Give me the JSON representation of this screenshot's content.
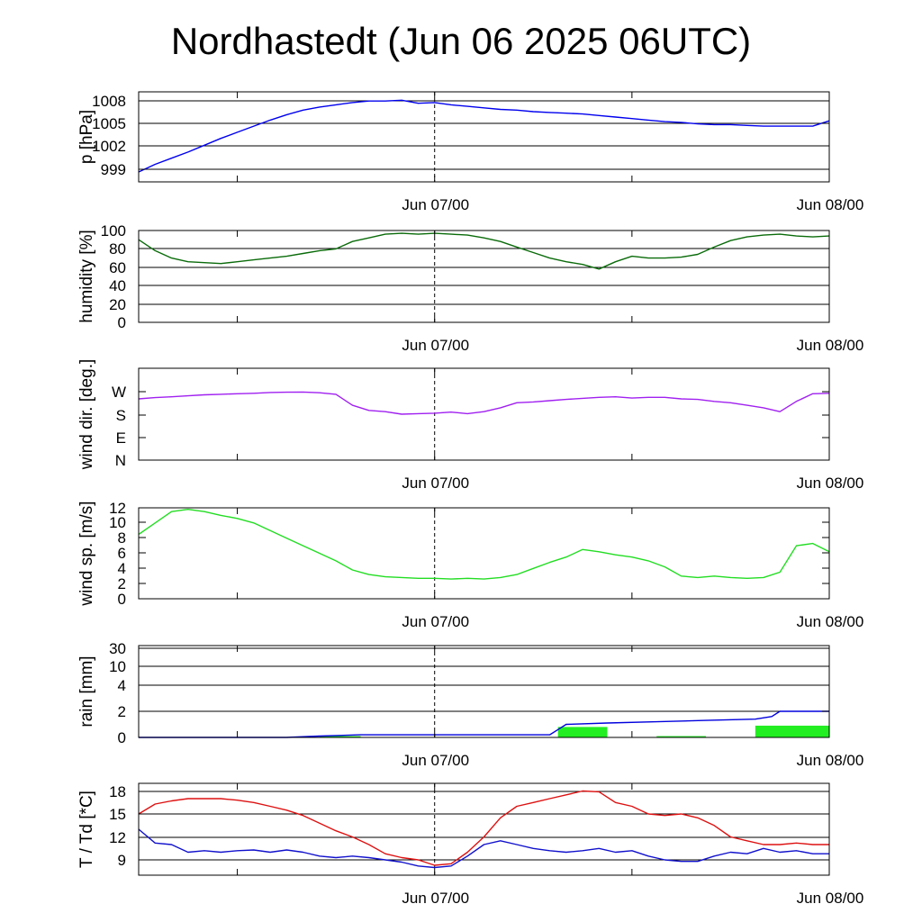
{
  "title": "Nordhastedt (Jun 06 2025 06UTC)",
  "colors": {
    "pressure": "#0000ee",
    "humidity": "#0a6b0a",
    "wind_direction": "#a020f0",
    "wind_speed": "#22dd22",
    "rain_total": "#0000dd",
    "rain_bars": "#22ee22",
    "temperature": "#dd1111",
    "dewpoint": "#1111cc"
  },
  "chart_data": [
    {
      "type": "line",
      "ylabel": "p [hPa]",
      "x_ticks": [
        "Jun 07/00",
        "Jun 08/00"
      ],
      "yticks": [
        "999",
        "1002",
        "1005",
        "1008"
      ],
      "ylim": [
        997.5,
        1009.3
      ],
      "grid": true,
      "series": [
        {
          "x": [
            0,
            1,
            2,
            3,
            4,
            5,
            6,
            7,
            8,
            9,
            10,
            11,
            12,
            13,
            14,
            15,
            16,
            17,
            18,
            19,
            20,
            21,
            22,
            23,
            24,
            25,
            26,
            27,
            28,
            29,
            30,
            31,
            32,
            33,
            34,
            35,
            36,
            37,
            38,
            39,
            40,
            41,
            42
          ],
          "values": [
            998.8,
            999.8,
            1000.6,
            1001.4,
            1002.3,
            1003.2,
            1004.0,
            1004.8,
            1005.6,
            1006.3,
            1006.9,
            1007.3,
            1007.6,
            1007.9,
            1008.1,
            1008.1,
            1008.2,
            1007.8,
            1007.9,
            1007.6,
            1007.4,
            1007.2,
            1007.0,
            1006.9,
            1006.7,
            1006.6,
            1006.5,
            1006.4,
            1006.2,
            1006.0,
            1005.8,
            1005.6,
            1005.4,
            1005.3,
            1005.1,
            1005.0,
            1005.0,
            1004.9,
            1004.8,
            1004.8,
            1004.8,
            1004.8,
            1005.5
          ]
        }
      ]
    },
    {
      "type": "line",
      "ylabel": "humidity [%]",
      "x_ticks": [
        "Jun 07/00",
        "Jun 08/00"
      ],
      "yticks": [
        "0",
        "20",
        "40",
        "60",
        "80",
        "100"
      ],
      "ylim": [
        0,
        100
      ],
      "grid": true,
      "series": [
        {
          "x": [
            0,
            1,
            2,
            3,
            4,
            5,
            6,
            7,
            8,
            9,
            10,
            11,
            12,
            13,
            14,
            15,
            16,
            17,
            18,
            19,
            20,
            21,
            22,
            23,
            24,
            25,
            26,
            27,
            28,
            29,
            30,
            31,
            32,
            33,
            34,
            35,
            36,
            37,
            38,
            39,
            40,
            41,
            42
          ],
          "values": [
            90,
            78,
            70,
            66,
            65,
            64,
            66,
            68,
            70,
            72,
            75,
            78,
            80,
            88,
            92,
            96,
            97,
            96,
            97,
            96,
            95,
            92,
            88,
            82,
            76,
            70,
            66,
            63,
            58,
            66,
            72,
            70,
            70,
            71,
            74,
            82,
            89,
            93,
            95,
            96,
            94,
            93,
            94
          ]
        }
      ]
    },
    {
      "type": "line",
      "ylabel": "wind dir. [deg.]",
      "x_ticks": [
        "Jun 07/00",
        "Jun 08/00"
      ],
      "yticks": [
        "N",
        "E",
        "S",
        "W"
      ],
      "ylim": [
        0,
        360
      ],
      "grid": false,
      "series": [
        {
          "x": [
            0,
            1,
            2,
            3,
            4,
            5,
            6,
            7,
            8,
            9,
            10,
            11,
            12,
            13,
            14,
            15,
            16,
            17,
            18,
            19,
            20,
            21,
            22,
            23,
            24,
            25,
            26,
            27,
            28,
            29,
            30,
            31,
            32,
            33,
            34,
            35,
            36,
            37,
            38,
            39,
            40,
            41,
            42
          ],
          "values": [
            240,
            245,
            248,
            252,
            256,
            258,
            260,
            262,
            265,
            266,
            267,
            264,
            258,
            215,
            195,
            190,
            180,
            182,
            184,
            188,
            182,
            190,
            205,
            225,
            228,
            233,
            238,
            242,
            246,
            248,
            243,
            246,
            246,
            240,
            238,
            230,
            225,
            215,
            205,
            190,
            230,
            260,
            262
          ]
        }
      ]
    },
    {
      "type": "line",
      "ylabel": "wind sp. [m/s]",
      "x_ticks": [
        "Jun 07/00",
        "Jun 08/00"
      ],
      "yticks": [
        "0",
        "2",
        "4",
        "6",
        "8",
        "10",
        "12"
      ],
      "ylim": [
        0,
        12
      ],
      "grid": false,
      "series": [
        {
          "x": [
            0,
            1,
            2,
            3,
            4,
            5,
            6,
            7,
            8,
            9,
            10,
            11,
            12,
            13,
            14,
            15,
            16,
            17,
            18,
            19,
            20,
            21,
            22,
            23,
            24,
            25,
            26,
            27,
            28,
            29,
            30,
            31,
            32,
            33,
            34,
            35,
            36,
            37,
            38,
            39,
            40,
            41,
            42
          ],
          "values": [
            8.5,
            10.0,
            11.5,
            11.8,
            11.5,
            11.0,
            10.6,
            10.0,
            9.0,
            8.0,
            7.0,
            6.0,
            5.0,
            3.8,
            3.2,
            2.9,
            2.8,
            2.7,
            2.7,
            2.6,
            2.7,
            2.6,
            2.8,
            3.2,
            4.0,
            4.8,
            5.5,
            6.5,
            6.2,
            5.8,
            5.5,
            5.0,
            4.2,
            3.0,
            2.8,
            3.0,
            2.8,
            2.7,
            2.8,
            3.5,
            7.0,
            7.3,
            6.2
          ]
        }
      ]
    },
    {
      "type": "bar",
      "ylabel": "rain [mm]",
      "x_ticks": [
        "Jun 07/00",
        "Jun 08/00"
      ],
      "yticks": [
        "0",
        "2",
        "4",
        "10",
        "30"
      ],
      "ylim": [
        0,
        30
      ],
      "grid": true,
      "bars": [
        {
          "x_start": 11,
          "x_end": 13.5,
          "value": 0.1
        },
        {
          "x_start": 25.5,
          "x_end": 28.5,
          "value": 0.8
        },
        {
          "x_start": 31.5,
          "x_end": 34.5,
          "value": 0.1
        },
        {
          "x_start": 37.5,
          "x_end": 42,
          "value": 0.9
        }
      ],
      "series": [
        {
          "x": [
            0,
            9,
            11,
            13.5,
            25,
            25.5,
            26,
            28.5,
            31.5,
            34.5,
            37.5,
            38.5,
            39,
            42
          ],
          "values": [
            0,
            0,
            0.1,
            0.2,
            0.2,
            0.6,
            1.0,
            1.1,
            1.2,
            1.3,
            1.4,
            1.6,
            2.0,
            2.0
          ]
        }
      ]
    },
    {
      "type": "line",
      "ylabel": "T / Td [*C]",
      "x_ticks": [
        "Jun 07/00",
        "Jun 08/00"
      ],
      "yticks": [
        "9",
        "12",
        "15",
        "18"
      ],
      "ylim": [
        7,
        19
      ],
      "grid": true,
      "series": [
        {
          "x": [
            0,
            1,
            2,
            3,
            4,
            5,
            6,
            7,
            8,
            9,
            10,
            11,
            12,
            13,
            14,
            15,
            16,
            17,
            18,
            19,
            20,
            21,
            22,
            23,
            24,
            25,
            26,
            27,
            28,
            29,
            30,
            31,
            32,
            33,
            34,
            35,
            36,
            37,
            38,
            39,
            40,
            41,
            42
          ],
          "values": [
            15.0,
            16.3,
            16.7,
            17.0,
            17.0,
            17.0,
            16.8,
            16.5,
            16.0,
            15.5,
            14.8,
            13.8,
            12.8,
            12.0,
            11.0,
            9.8,
            9.3,
            9.0,
            8.3,
            8.5,
            10.0,
            12.0,
            14.5,
            16.0,
            16.5,
            17.0,
            17.5,
            18.0,
            17.9,
            16.5,
            16.0,
            15.0,
            14.8,
            15.0,
            14.5,
            13.5,
            12.0,
            11.5,
            11.0,
            11.0,
            11.2,
            11.0,
            11.0
          ]
        },
        {
          "x": [
            0,
            1,
            2,
            3,
            4,
            5,
            6,
            7,
            8,
            9,
            10,
            11,
            12,
            13,
            14,
            15,
            16,
            17,
            18,
            19,
            20,
            21,
            22,
            23,
            24,
            25,
            26,
            27,
            28,
            29,
            30,
            31,
            32,
            33,
            34,
            35,
            36,
            37,
            38,
            39,
            40,
            41,
            42
          ],
          "values": [
            13.0,
            11.2,
            11.0,
            10.0,
            10.2,
            10.0,
            10.2,
            10.3,
            10.0,
            10.3,
            10.0,
            9.5,
            9.3,
            9.5,
            9.3,
            9.0,
            8.7,
            8.2,
            8.0,
            8.2,
            9.5,
            11.0,
            11.5,
            11.0,
            10.5,
            10.2,
            10.0,
            10.2,
            10.5,
            10.0,
            10.2,
            9.5,
            9.0,
            8.8,
            8.8,
            9.5,
            10.0,
            9.8,
            10.5,
            10.0,
            10.2,
            9.8,
            9.8
          ]
        }
      ]
    }
  ]
}
